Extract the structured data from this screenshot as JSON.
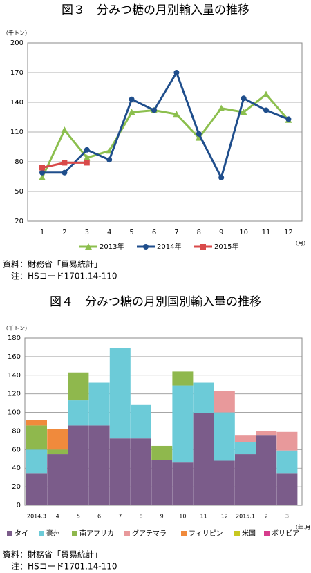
{
  "chart_data": [
    {
      "type": "line",
      "title": "図３　分みつ糖の月別輸入量の推移",
      "y_label": "（千トン）",
      "x_label": "（月）",
      "categories": [
        "1",
        "2",
        "3",
        "4",
        "5",
        "6",
        "7",
        "8",
        "9",
        "10",
        "11",
        "12"
      ],
      "ylim": [
        20,
        200
      ],
      "yticks": [
        20,
        50,
        80,
        110,
        140,
        170,
        200
      ],
      "grid": true,
      "series": [
        {
          "name": "2013年",
          "color": "#8cbf4e",
          "marker": "triangle",
          "values": [
            64,
            112,
            84,
            91,
            130,
            132,
            128,
            104,
            134,
            130,
            148,
            122
          ]
        },
        {
          "name": "2014年",
          "color": "#1f4e8c",
          "marker": "circle",
          "values": [
            69,
            69,
            92,
            82,
            143,
            132,
            170,
            108,
            64,
            144,
            132,
            123
          ]
        },
        {
          "name": "2015年",
          "color": "#d94a4a",
          "marker": "square",
          "values": [
            74,
            79,
            79,
            null,
            null,
            null,
            null,
            null,
            null,
            null,
            null,
            null
          ]
        }
      ],
      "source": "資料：財務省「貿易統計」",
      "note": "注：HSコード1701.14-110"
    },
    {
      "type": "stacked_bar",
      "title": "図４　分みつ糖の月別国別輸入量の推移",
      "y_label": "（千トン）",
      "x_label": "（年.月）",
      "categories": [
        "2014.3",
        "4",
        "5",
        "6",
        "7",
        "8",
        "9",
        "10",
        "11",
        "12",
        "2015.1",
        "2",
        "3"
      ],
      "ylim": [
        0,
        180
      ],
      "yticks": [
        0,
        20,
        40,
        60,
        80,
        100,
        120,
        140,
        160,
        180
      ],
      "grid": true,
      "series": [
        {
          "name": "タイ",
          "color": "#7b5c8a",
          "values": [
            34,
            55,
            86,
            86,
            72,
            72,
            49,
            46,
            99,
            48,
            55,
            75,
            34
          ]
        },
        {
          "name": "豪州",
          "color": "#6ccbd8",
          "values": [
            26,
            0,
            27,
            46,
            97,
            36,
            0,
            83,
            33,
            52,
            13,
            0,
            25
          ]
        },
        {
          "name": "南アフリカ",
          "color": "#8fb84d",
          "values": [
            26,
            5,
            30,
            0,
            0,
            0,
            15,
            15,
            0,
            0,
            0,
            0,
            0
          ]
        },
        {
          "name": "グアテマラ",
          "color": "#e8999b",
          "values": [
            0,
            0,
            0,
            0,
            0,
            0,
            0,
            0,
            0,
            23,
            7,
            5,
            20
          ]
        },
        {
          "name": "フィリピン",
          "color": "#f08a3c",
          "values": [
            6,
            22,
            0,
            0,
            0,
            0,
            0,
            0,
            0,
            0,
            0,
            0,
            0
          ]
        },
        {
          "name": "米国",
          "color": "#c8c820",
          "values": [
            0,
            0,
            0,
            0,
            0,
            0,
            0,
            0,
            0,
            0,
            0,
            0,
            0
          ]
        },
        {
          "name": "ボリビア",
          "color": "#d63c8c",
          "values": [
            0,
            0,
            0,
            0,
            0,
            0,
            0,
            0,
            0,
            0,
            0,
            0,
            0
          ]
        }
      ],
      "source": "資料：財務省「貿易統計」",
      "note": "注：HSコード1701.14-110"
    }
  ]
}
